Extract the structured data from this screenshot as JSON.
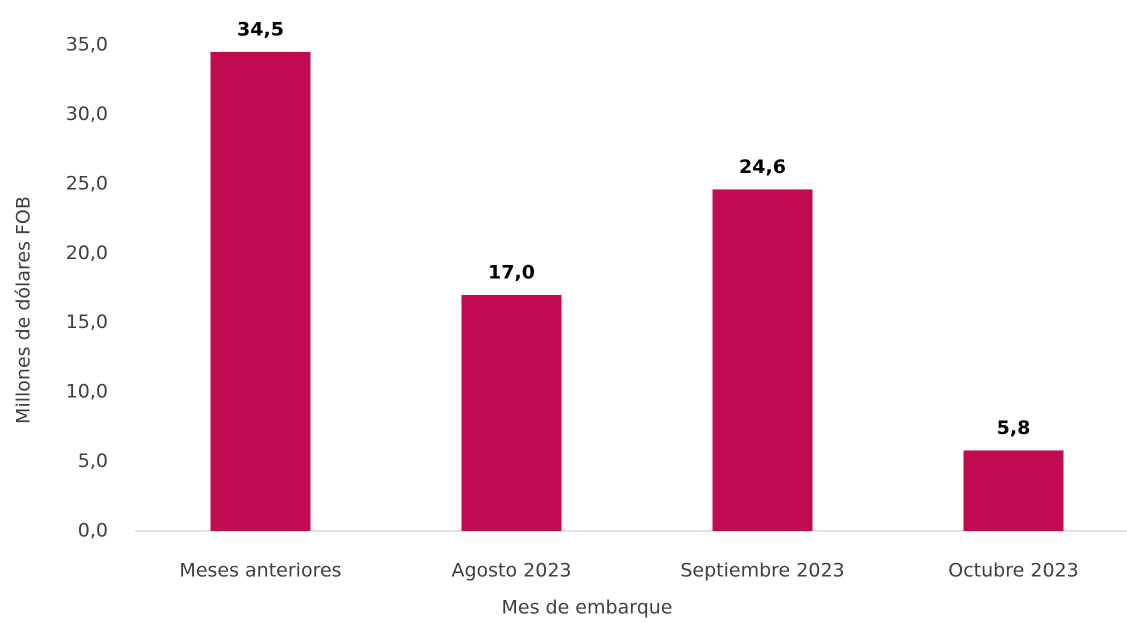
{
  "chart_data": {
    "type": "bar",
    "x_label": "Mes de embarque",
    "y_label": "Millones de dólares FOB",
    "categories": [
      "Meses anteriores",
      "Agosto 2023",
      "Septiembre 2023",
      "Octubre 2023"
    ],
    "values": [
      34.5,
      17.0,
      24.6,
      5.8
    ],
    "value_labels": [
      "34,5",
      "17,0",
      "24,6",
      "5,8"
    ],
    "color": "#c20a50",
    "ylim": [
      0,
      35
    ],
    "yticks": [
      {
        "value": 0,
        "label": "0,0"
      },
      {
        "value": 5,
        "label": "5,0"
      },
      {
        "value": 10,
        "label": "10,0"
      },
      {
        "value": 15,
        "label": "15,0"
      },
      {
        "value": 20,
        "label": "20,0"
      },
      {
        "value": 25,
        "label": "25,0"
      },
      {
        "value": 30,
        "label": "30,0"
      },
      {
        "value": 35,
        "label": "35,0"
      }
    ],
    "grid": false
  }
}
